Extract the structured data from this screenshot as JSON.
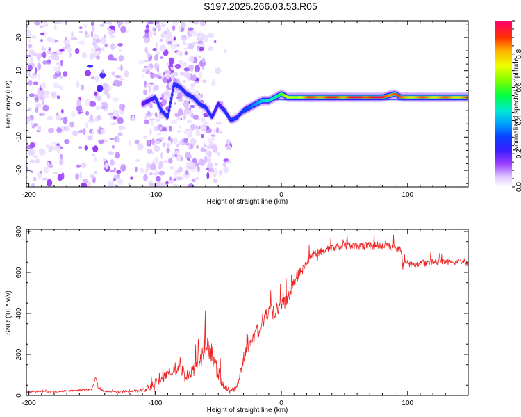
{
  "figure_title": "S197.2025.266.03.53.R05",
  "colors": {
    "snr_line": "#ee2020",
    "axis": "#000000",
    "colormap": [
      "#ffffff",
      "#e8d8ff",
      "#b070ff",
      "#8a1cf0",
      "#3a1cff",
      "#0a40ff",
      "#00a0ff",
      "#00e8d0",
      "#00ff40",
      "#80ff00",
      "#f0ff00",
      "#ffb000",
      "#ff3000",
      "#ff0060"
    ]
  },
  "chart_data": [
    {
      "type": "heatmap",
      "title": "S197.2025.266.03.53.R05",
      "xlabel": "Height of straight line (km)",
      "ylabel": "Frequency (Hz)",
      "xlim": [
        -202,
        148
      ],
      "ylim": [
        -25,
        25
      ],
      "x_ticks": [
        -200,
        -100,
        0,
        100
      ],
      "y_ticks": [
        -20,
        -10,
        0,
        10,
        20
      ],
      "colorbar": {
        "label": "Normalized spectral amplitude",
        "range": [
          0,
          1
        ],
        "ticks": [
          "0.0",
          "0.2",
          "0.4",
          "0.6",
          "0.8"
        ]
      },
      "ridge": {
        "x": [
          -110,
          -105,
          -100,
          -95,
          -90,
          -85,
          -80,
          -75,
          -70,
          -65,
          -60,
          -55,
          -50,
          -45,
          -40,
          -35,
          -30,
          -25,
          -20,
          -15,
          -10,
          -5,
          0,
          5,
          10,
          20,
          30,
          40,
          50,
          60,
          70,
          80,
          90,
          95,
          100,
          110,
          120,
          130,
          140,
          148
        ],
        "frequency": [
          0,
          1,
          2,
          -2,
          -4,
          6,
          5,
          3,
          2,
          0,
          -1,
          -4,
          0,
          -2,
          -5,
          -4,
          -2,
          -1,
          0,
          1,
          1,
          2,
          3,
          2,
          2,
          2,
          2,
          2,
          2,
          2,
          2,
          2,
          3,
          2,
          2,
          2,
          2,
          2,
          2,
          2
        ],
        "amplitude": [
          0.25,
          0.3,
          0.35,
          0.35,
          0.35,
          0.35,
          0.35,
          0.35,
          0.35,
          0.35,
          0.35,
          0.35,
          0.3,
          0.35,
          0.35,
          0.35,
          0.38,
          0.4,
          0.45,
          0.5,
          0.55,
          0.6,
          0.65,
          0.7,
          0.75,
          0.85,
          0.9,
          0.9,
          0.9,
          0.95,
          0.95,
          0.95,
          0.9,
          0.85,
          0.85,
          0.85,
          0.85,
          0.85,
          0.85,
          0.85
        ]
      }
    },
    {
      "type": "line",
      "xlabel": "Height of straight line (km)",
      "ylabel": "SNR (10 * v/v)",
      "xlim": [
        -202,
        148
      ],
      "ylim": [
        0,
        810
      ],
      "x_ticks": [
        -200,
        -100,
        0,
        100
      ],
      "y_ticks": [
        0,
        200,
        400,
        600,
        800
      ],
      "series": [
        {
          "name": "SNR",
          "x": [
            -202,
            -190,
            -180,
            -170,
            -160,
            -150,
            -147,
            -145,
            -140,
            -130,
            -120,
            -110,
            -105,
            -100,
            -95,
            -90,
            -85,
            -80,
            -75,
            -70,
            -65,
            -60,
            -55,
            -50,
            -45,
            -40,
            -35,
            -30,
            -25,
            -20,
            -15,
            -10,
            -5,
            0,
            5,
            10,
            15,
            20,
            25,
            30,
            35,
            40,
            50,
            60,
            70,
            80,
            90,
            95,
            96,
            100,
            110,
            120,
            130,
            140,
            148
          ],
          "y": [
            15,
            20,
            18,
            22,
            25,
            30,
            90,
            35,
            20,
            18,
            20,
            25,
            40,
            60,
            80,
            110,
            130,
            130,
            100,
            120,
            160,
            240,
            200,
            110,
            40,
            20,
            40,
            180,
            260,
            300,
            360,
            400,
            420,
            440,
            480,
            560,
            600,
            640,
            690,
            700,
            710,
            720,
            730,
            730,
            730,
            730,
            720,
            710,
            640,
            640,
            640,
            650,
            650,
            650,
            650
          ],
          "spread": [
            15,
            15,
            15,
            15,
            15,
            15,
            10,
            15,
            15,
            15,
            15,
            30,
            60,
            70,
            80,
            90,
            110,
            110,
            100,
            110,
            140,
            180,
            170,
            140,
            40,
            20,
            60,
            100,
            130,
            140,
            140,
            150,
            140,
            140,
            130,
            120,
            100,
            80,
            70,
            60,
            60,
            60,
            60,
            60,
            60,
            70,
            60,
            50,
            40,
            50,
            50,
            50,
            50,
            50,
            40
          ]
        }
      ]
    }
  ]
}
